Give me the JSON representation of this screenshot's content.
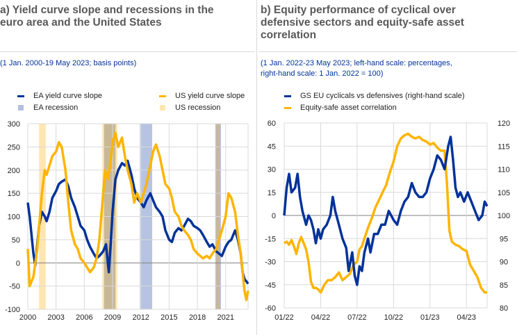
{
  "panel_a": {
    "title_line1": "a) Yield curve slope and recessions in the",
    "title_line2": "euro area and the United States",
    "subtitle": "(1 Jan. 2000-19 May 2023; basis points)"
  },
  "panel_b": {
    "title_line1": "b) Equity performance of cyclical over",
    "title_line2": "defensive sectors and equity-safe asset",
    "title_line3": "correlation",
    "subtitle_line1": "(1 Jan. 2022-23 May 2023; left-hand scale: percentages,",
    "subtitle_line2": "right-hand scale: 1 Jan. 2022 = 100)"
  },
  "colors": {
    "ea": "#003299",
    "us": "#FFB400",
    "ea_recession": "#B2C0E0",
    "us_recession": "#FFE5B0",
    "overlap_recession": "#C8B896",
    "grid": "#d9d9d9",
    "zero_line": "#7f7f7f"
  },
  "chart_data": [
    {
      "type": "line",
      "title": "Yield curve slope and recessions in the euro area and the United States",
      "xlabel": "",
      "ylabel": "basis points",
      "x_range": [
        2000.0,
        2023.38
      ],
      "ylim": [
        -100,
        300
      ],
      "yticks": [
        -100,
        -50,
        0,
        50,
        100,
        150,
        200,
        250,
        300
      ],
      "xtick_labels": [
        "2000",
        "2003",
        "2006",
        "2009",
        "2012",
        "2015",
        "2018",
        "2021"
      ],
      "xticks": [
        2000,
        2003,
        2006,
        2009,
        2012,
        2015,
        2018,
        2021
      ],
      "grid": true,
      "legend": {
        "placement": "top",
        "entries": [
          "EA yield curve slope",
          "US yield curve slope",
          "EA recession",
          "US recession"
        ]
      },
      "series": [
        {
          "name": "EA yield curve slope",
          "color_key": "ea",
          "x": [
            2000.0,
            2000.2,
            2000.4,
            2000.6,
            2000.8,
            2001.0,
            2001.2,
            2001.5,
            2001.8,
            2002.0,
            2002.3,
            2002.6,
            2003.0,
            2003.3,
            2003.6,
            2004.0,
            2004.3,
            2004.6,
            2005.0,
            2005.3,
            2005.6,
            2006.0,
            2006.3,
            2006.6,
            2007.0,
            2007.3,
            2007.6,
            2008.0,
            2008.3,
            2008.6,
            2008.8,
            2009.0,
            2009.3,
            2009.6,
            2010.0,
            2010.3,
            2010.6,
            2011.0,
            2011.3,
            2011.6,
            2012.0,
            2012.3,
            2012.6,
            2013.0,
            2013.3,
            2013.6,
            2014.0,
            2014.3,
            2014.6,
            2015.0,
            2015.3,
            2015.6,
            2016.0,
            2016.3,
            2016.6,
            2017.0,
            2017.3,
            2017.6,
            2018.0,
            2018.3,
            2018.6,
            2019.0,
            2019.3,
            2019.6,
            2020.0,
            2020.3,
            2020.6,
            2021.0,
            2021.3,
            2021.6,
            2022.0,
            2022.3,
            2022.6,
            2022.8,
            2023.0,
            2023.2,
            2023.38
          ],
          "values": [
            130,
            100,
            60,
            20,
            -5,
            40,
            80,
            110,
            100,
            90,
            110,
            140,
            155,
            170,
            175,
            180,
            165,
            140,
            120,
            100,
            80,
            70,
            50,
            35,
            20,
            10,
            15,
            25,
            40,
            -20,
            40,
            110,
            180,
            200,
            215,
            210,
            220,
            190,
            160,
            140,
            130,
            120,
            135,
            150,
            135,
            120,
            110,
            100,
            70,
            50,
            45,
            65,
            75,
            70,
            80,
            95,
            90,
            80,
            75,
            70,
            60,
            45,
            35,
            40,
            25,
            20,
            15,
            35,
            45,
            50,
            70,
            50,
            20,
            -20,
            -35,
            -40,
            -45
          ]
        },
        {
          "name": "US yield curve slope",
          "color_key": "us",
          "x": [
            2000.0,
            2000.2,
            2000.4,
            2000.6,
            2000.8,
            2001.0,
            2001.2,
            2001.5,
            2001.8,
            2002.0,
            2002.3,
            2002.6,
            2003.0,
            2003.3,
            2003.6,
            2004.0,
            2004.3,
            2004.6,
            2005.0,
            2005.3,
            2005.6,
            2006.0,
            2006.3,
            2006.6,
            2007.0,
            2007.3,
            2007.6,
            2008.0,
            2008.2,
            2008.5,
            2008.8,
            2009.0,
            2009.3,
            2009.6,
            2010.0,
            2010.3,
            2010.6,
            2011.0,
            2011.3,
            2011.6,
            2012.0,
            2012.3,
            2012.6,
            2013.0,
            2013.3,
            2013.6,
            2014.0,
            2014.3,
            2014.6,
            2015.0,
            2015.3,
            2015.6,
            2016.0,
            2016.3,
            2016.6,
            2017.0,
            2017.3,
            2017.6,
            2018.0,
            2018.3,
            2018.6,
            2019.0,
            2019.3,
            2019.6,
            2020.0,
            2020.3,
            2020.6,
            2021.0,
            2021.3,
            2021.6,
            2022.0,
            2022.3,
            2022.6,
            2022.8,
            2023.0,
            2023.2,
            2023.38
          ],
          "values": [
            30,
            -50,
            -40,
            -30,
            0,
            30,
            80,
            150,
            200,
            190,
            210,
            230,
            240,
            260,
            250,
            200,
            130,
            70,
            40,
            30,
            10,
            0,
            -10,
            -20,
            -10,
            10,
            50,
            150,
            200,
            180,
            220,
            260,
            280,
            250,
            270,
            230,
            200,
            170,
            130,
            150,
            130,
            150,
            170,
            210,
            240,
            255,
            230,
            200,
            170,
            160,
            140,
            110,
            100,
            80,
            70,
            60,
            50,
            30,
            20,
            15,
            10,
            15,
            10,
            20,
            30,
            50,
            70,
            100,
            150,
            140,
            110,
            60,
            20,
            -20,
            -60,
            -80,
            -60
          ]
        }
      ],
      "recessions": [
        {
          "region": "US",
          "start": 2001.2,
          "end": 2001.9
        },
        {
          "region": "US",
          "start": 2007.9,
          "end": 2009.5
        },
        {
          "region": "EA",
          "start": 2008.1,
          "end": 2009.3
        },
        {
          "region": "EA",
          "start": 2011.9,
          "end": 2013.2
        },
        {
          "region": "US",
          "start": 2020.0,
          "end": 2020.4
        },
        {
          "region": "EA",
          "start": 2019.9,
          "end": 2020.5
        }
      ]
    },
    {
      "type": "line",
      "title": "Equity performance of cyclical over defensive sectors and equity-safe asset correlation",
      "xlabel": "",
      "ylabel_left": "percentages",
      "ylabel_right": "1 Jan. 2022 = 100",
      "x_range": [
        0,
        16.7
      ],
      "xticks": [
        0,
        3,
        6,
        9,
        12,
        15
      ],
      "xtick_labels": [
        "01/22",
        "04/22",
        "07/22",
        "10/22",
        "01/23",
        "04/23"
      ],
      "ylim_left": [
        -60,
        60
      ],
      "yticks_left": [
        -60,
        -45,
        -30,
        -15,
        0,
        15,
        30,
        45,
        60
      ],
      "ylim_right": [
        80,
        120
      ],
      "yticks_right": [
        80,
        85,
        90,
        95,
        100,
        105,
        110,
        115,
        120
      ],
      "grid": true,
      "legend": {
        "placement": "top",
        "entries": [
          "GS EU cyclicals vs defensives  (right-hand scale)",
          "Equity-safe asset correlation"
        ]
      },
      "series": [
        {
          "name": "GS EU cyclicals vs defensives  (right-hand scale)",
          "axis": "right",
          "color_key": "ea",
          "x": [
            0,
            0.2,
            0.4,
            0.6,
            0.9,
            1.1,
            1.3,
            1.5,
            1.8,
            2.0,
            2.2,
            2.4,
            2.6,
            2.8,
            3.0,
            3.2,
            3.5,
            3.8,
            4.0,
            4.2,
            4.5,
            4.8,
            5.1,
            5.3,
            5.6,
            5.8,
            6.0,
            6.2,
            6.4,
            6.6,
            6.9,
            7.1,
            7.4,
            7.7,
            8.0,
            8.3,
            8.6,
            9.0,
            9.3,
            9.6,
            9.9,
            10.2,
            10.5,
            10.8,
            11.1,
            11.4,
            11.7,
            12.0,
            12.3,
            12.6,
            12.9,
            13.2,
            13.5,
            13.7,
            13.9,
            14.1,
            14.3,
            14.5,
            14.8,
            15.1,
            15.4,
            15.7,
            16.0,
            16.3,
            16.5,
            16.7
          ],
          "values": [
            100,
            106,
            109,
            105,
            106,
            109,
            104,
            101,
            98,
            100,
            99,
            97,
            94,
            97,
            95,
            97,
            98,
            100,
            104,
            101,
            98,
            95,
            93,
            88,
            92,
            87,
            85,
            89,
            88,
            92,
            95,
            92,
            96,
            96,
            98,
            98,
            101,
            99,
            98,
            101,
            103,
            104,
            107,
            105,
            104,
            104,
            105,
            108,
            110,
            113,
            112,
            110,
            115,
            117,
            112,
            106,
            104,
            105,
            103,
            105,
            103,
            101,
            99,
            100,
            103,
            102
          ]
        },
        {
          "name": "Equity-safe asset correlation",
          "axis": "left",
          "color_key": "us",
          "x": [
            0,
            0.2,
            0.4,
            0.6,
            0.8,
            1.0,
            1.2,
            1.4,
            1.6,
            1.8,
            2.0,
            2.2,
            2.4,
            2.6,
            2.8,
            3.0,
            3.3,
            3.6,
            3.9,
            4.2,
            4.5,
            4.8,
            5.1,
            5.4,
            5.7,
            6.0,
            6.2,
            6.4,
            6.6,
            6.9,
            7.2,
            7.5,
            7.8,
            8.1,
            8.4,
            8.7,
            9.0,
            9.3,
            9.6,
            9.9,
            10.2,
            10.5,
            10.8,
            11.1,
            11.4,
            11.7,
            12.0,
            12.3,
            12.6,
            12.9,
            13.2,
            13.4,
            13.5,
            13.6,
            13.8,
            14.1,
            14.4,
            14.7,
            15.0,
            15.3,
            15.6,
            15.9,
            16.2,
            16.5,
            16.7
          ],
          "values": [
            -18,
            -17,
            -19,
            -16,
            -20,
            -25,
            -18,
            -14,
            -18,
            -22,
            -30,
            -43,
            -47,
            -47,
            -48,
            -50,
            -45,
            -42,
            -42,
            -40,
            -37,
            -42,
            -40,
            -38,
            -32,
            -30,
            -22,
            -20,
            -15,
            -8,
            -2,
            5,
            10,
            15,
            20,
            28,
            35,
            45,
            50,
            52,
            53,
            51,
            50,
            51,
            49,
            48,
            46,
            47,
            44,
            42,
            42,
            20,
            5,
            -10,
            -17,
            -19,
            -20,
            -22,
            -23,
            -32,
            -36,
            -40,
            -47,
            -50,
            -50
          ]
        }
      ]
    }
  ]
}
